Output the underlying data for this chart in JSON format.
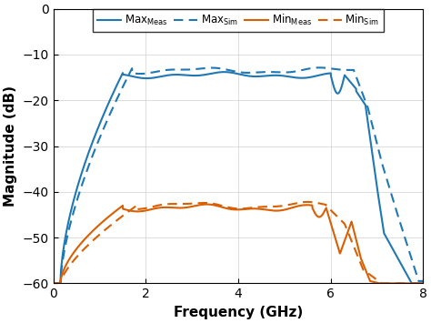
{
  "title": "",
  "xlabel": "Frequency (GHz)",
  "ylabel": "Magnitude (dB)",
  "xlim": [
    0,
    8
  ],
  "ylim": [
    -60,
    0
  ],
  "xticks": [
    0,
    2,
    4,
    6,
    8
  ],
  "yticks": [
    0,
    -10,
    -20,
    -30,
    -40,
    -50,
    -60
  ],
  "blue_color": "#1f77b4",
  "orange_color": "#d95f02",
  "legend_labels": [
    "Max$_\\mathrm{Meas}$",
    "Max$_\\mathrm{Sim}$",
    "Min$_\\mathrm{Meas}$",
    "Min$_\\mathrm{Sim}$"
  ],
  "figsize": [
    4.74,
    3.55
  ],
  "dpi": 100
}
